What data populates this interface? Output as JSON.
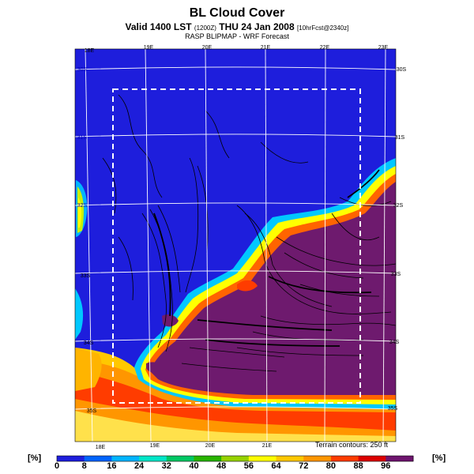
{
  "header": {
    "title": "BL Cloud Cover",
    "valid_prefix": "Valid 1400 LST ",
    "valid_z": "(1200Z)",
    "valid_date": " THU 24 Jan 2008 ",
    "valid_suffix": "[10hrFcst@2340z]",
    "subtitle": "RASP BLIPMAP - WRF Forecast"
  },
  "map": {
    "lon_labels_top": [
      "18E",
      "19E",
      "20E",
      "21E",
      "22E",
      "23E"
    ],
    "lon_labels_bottom": [
      "18E",
      "19E",
      "20E",
      "21E"
    ],
    "lat_labels_left": [
      "33S",
      "34S",
      "35S"
    ],
    "lat_labels_right": [
      "30S",
      "31S",
      "32S",
      "33S",
      "34S",
      "35S"
    ],
    "lat_labels_left_faint": [
      "30S",
      "31S",
      "32S"
    ],
    "terrain_note": "Terrain contours: 250 ft"
  },
  "colorbar": {
    "unit_left": "[%]",
    "unit_right": "[%]",
    "ticks": [
      "0",
      "8",
      "16",
      "24",
      "32",
      "40",
      "48",
      "56",
      "64",
      "72",
      "80",
      "88",
      "96"
    ],
    "colors": [
      "#1e1edc",
      "#0064ff",
      "#00b4ff",
      "#00e6c8",
      "#00c864",
      "#28b400",
      "#96d200",
      "#ffff00",
      "#ffc800",
      "#ff9600",
      "#ff3c00",
      "#dc0000",
      "#6e146e"
    ]
  },
  "legend_colors": {
    "deep_water_blue": "#1e1edc",
    "cloud_purple": "#6e1a6e"
  }
}
